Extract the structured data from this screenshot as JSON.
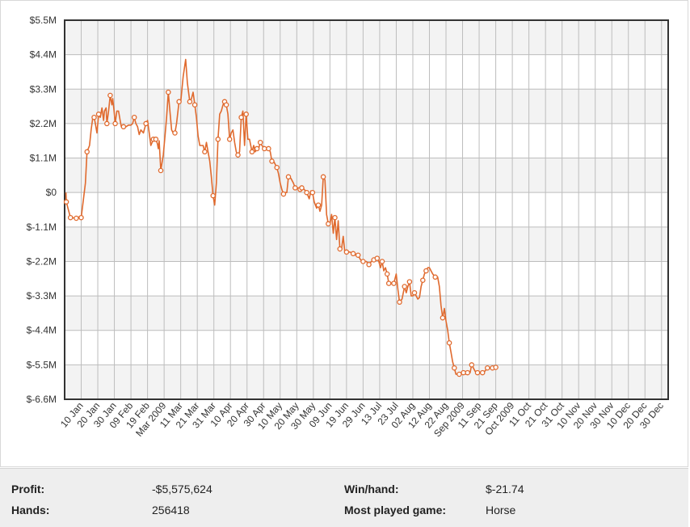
{
  "chart_data": {
    "type": "line",
    "title": "",
    "xlabel": "",
    "ylabel": "",
    "ylim": [
      -6.6,
      5.5
    ],
    "y_ticks": [
      "$5.5M",
      "$4.4M",
      "$3.3M",
      "$2.2M",
      "$1.1M",
      "$0",
      "$-1.1M",
      "$-2.2M",
      "$-3.3M",
      "$-4.4M",
      "$-5.5M",
      "$-6.6M"
    ],
    "x_ticks": [
      "10 Jan",
      "20 Jan",
      "30 Jan",
      "09 Feb",
      "19 Feb",
      "Mar 2009",
      "11 Mar",
      "21 Mar",
      "31 Mar",
      "10 Apr",
      "20 Apr",
      "30 Apr",
      "10 May",
      "20 May",
      "30 May",
      "09 Jun",
      "19 Jun",
      "29 Jun",
      "13 Jul",
      "23 Jul",
      "02 Aug",
      "12 Aug",
      "22 Aug",
      "Sep 2009",
      "11 Sep",
      "21 Sep",
      "Oct 2009",
      "11 Oct",
      "21 Oct",
      "31 Oct",
      "10 Nov",
      "20 Nov",
      "30 Nov",
      "10 Dec",
      "20 Dec",
      "30 Dec"
    ],
    "x_range": [
      0,
      36.4
    ],
    "grid": true,
    "series_color": "#e06a2e",
    "series": [
      {
        "points": [
          [
            0.08,
            0.0
          ],
          [
            0.1,
            -0.3
          ],
          [
            0.2,
            -0.5
          ],
          [
            0.35,
            -0.8
          ],
          [
            0.7,
            -0.82
          ],
          [
            0.85,
            -0.78
          ],
          [
            1.0,
            -0.8
          ],
          [
            1.25,
            0.3
          ],
          [
            1.35,
            1.3
          ],
          [
            1.5,
            1.5
          ],
          [
            1.6,
            2.0
          ],
          [
            1.7,
            2.4
          ],
          [
            1.78,
            2.4
          ],
          [
            1.85,
            2.2
          ],
          [
            1.95,
            1.9
          ],
          [
            2.05,
            2.5
          ],
          [
            2.15,
            2.4
          ],
          [
            2.25,
            2.7
          ],
          [
            2.35,
            2.3
          ],
          [
            2.4,
            2.6
          ],
          [
            2.5,
            2.7
          ],
          [
            2.55,
            2.2
          ],
          [
            2.65,
            2.6
          ],
          [
            2.75,
            3.1
          ],
          [
            2.85,
            2.8
          ],
          [
            2.9,
            3.0
          ],
          [
            2.98,
            2.6
          ],
          [
            3.05,
            2.2
          ],
          [
            3.15,
            2.6
          ],
          [
            3.25,
            2.6
          ],
          [
            3.35,
            2.3
          ],
          [
            3.42,
            2.1
          ],
          [
            3.55,
            2.1
          ],
          [
            3.7,
            2.1
          ],
          [
            3.85,
            2.15
          ],
          [
            4.0,
            2.15
          ],
          [
            4.1,
            2.2
          ],
          [
            4.2,
            2.4
          ],
          [
            4.3,
            2.2
          ],
          [
            4.4,
            2.1
          ],
          [
            4.5,
            1.85
          ],
          [
            4.6,
            2.0
          ],
          [
            4.75,
            1.9
          ],
          [
            4.9,
            2.2
          ],
          [
            5.0,
            2.3
          ],
          [
            5.1,
            1.9
          ],
          [
            5.2,
            1.5
          ],
          [
            5.35,
            1.7
          ],
          [
            5.5,
            1.7
          ],
          [
            5.6,
            1.55
          ],
          [
            5.65,
            1.4
          ],
          [
            5.7,
            1.65
          ],
          [
            5.8,
            0.7
          ],
          [
            5.95,
            1.2
          ],
          [
            6.05,
            1.8
          ],
          [
            6.15,
            2.4
          ],
          [
            6.25,
            3.2
          ],
          [
            6.35,
            2.6
          ],
          [
            6.45,
            2.0
          ],
          [
            6.55,
            1.9
          ],
          [
            6.65,
            1.9
          ],
          [
            6.75,
            2.2
          ],
          [
            6.9,
            2.9
          ],
          [
            7.0,
            2.9
          ],
          [
            7.15,
            3.7
          ],
          [
            7.3,
            4.25
          ],
          [
            7.4,
            3.5
          ],
          [
            7.5,
            3.1
          ],
          [
            7.55,
            2.9
          ],
          [
            7.65,
            3.0
          ],
          [
            7.75,
            3.2
          ],
          [
            7.85,
            2.8
          ],
          [
            7.95,
            2.4
          ],
          [
            8.05,
            1.8
          ],
          [
            8.15,
            1.5
          ],
          [
            8.25,
            1.5
          ],
          [
            8.35,
            1.5
          ],
          [
            8.45,
            1.3
          ],
          [
            8.55,
            1.6
          ],
          [
            8.65,
            1.3
          ],
          [
            8.75,
            1.0
          ],
          [
            8.85,
            0.5
          ],
          [
            8.95,
            -0.1
          ],
          [
            9.05,
            -0.4
          ],
          [
            9.15,
            0.3
          ],
          [
            9.25,
            1.7
          ],
          [
            9.35,
            2.5
          ],
          [
            9.45,
            2.6
          ],
          [
            9.55,
            2.8
          ],
          [
            9.65,
            2.9
          ],
          [
            9.75,
            2.8
          ],
          [
            9.85,
            2.5
          ],
          [
            9.95,
            1.7
          ],
          [
            10.05,
            1.9
          ],
          [
            10.15,
            2.0
          ],
          [
            10.25,
            1.6
          ],
          [
            10.35,
            1.3
          ],
          [
            10.45,
            1.2
          ],
          [
            10.55,
            1.3
          ],
          [
            10.65,
            2.4
          ],
          [
            10.75,
            2.6
          ],
          [
            10.85,
            1.5
          ],
          [
            10.95,
            2.5
          ],
          [
            11.05,
            1.7
          ],
          [
            11.15,
            1.7
          ],
          [
            11.3,
            1.3
          ],
          [
            11.4,
            1.5
          ],
          [
            11.5,
            1.3
          ],
          [
            11.6,
            1.4
          ],
          [
            11.7,
            1.4
          ],
          [
            11.8,
            1.6
          ],
          [
            11.9,
            1.5
          ],
          [
            12.05,
            1.4
          ],
          [
            12.15,
            1.4
          ],
          [
            12.3,
            1.4
          ],
          [
            12.4,
            1.3
          ],
          [
            12.5,
            1.0
          ],
          [
            12.6,
            1.0
          ],
          [
            12.7,
            0.9
          ],
          [
            12.8,
            0.8
          ],
          [
            12.9,
            0.6
          ],
          [
            13.0,
            0.3
          ],
          [
            13.1,
            0.1
          ],
          [
            13.2,
            -0.05
          ],
          [
            13.3,
            0.0
          ],
          [
            13.4,
            0.0
          ],
          [
            13.5,
            0.5
          ],
          [
            13.65,
            0.45
          ],
          [
            13.8,
            0.3
          ],
          [
            13.9,
            0.15
          ],
          [
            14.05,
            0.15
          ],
          [
            14.2,
            0.1
          ],
          [
            14.3,
            0.15
          ],
          [
            14.45,
            0.1
          ],
          [
            14.6,
            0.0
          ],
          [
            14.75,
            -0.2
          ],
          [
            14.85,
            0.05
          ],
          [
            14.95,
            0.0
          ],
          [
            15.05,
            -0.3
          ],
          [
            15.2,
            -0.5
          ],
          [
            15.3,
            -0.4
          ],
          [
            15.4,
            -0.6
          ],
          [
            15.5,
            -0.4
          ],
          [
            15.6,
            0.5
          ],
          [
            15.7,
            0.4
          ],
          [
            15.8,
            -0.7
          ],
          [
            15.9,
            -1.0
          ],
          [
            16.0,
            -1.0
          ],
          [
            16.1,
            -0.7
          ],
          [
            16.2,
            -1.3
          ],
          [
            16.3,
            -0.8
          ],
          [
            16.4,
            -1.5
          ],
          [
            16.5,
            -0.9
          ],
          [
            16.6,
            -1.8
          ],
          [
            16.7,
            -1.8
          ],
          [
            16.8,
            -1.4
          ],
          [
            16.9,
            -1.9
          ],
          [
            17.0,
            -1.9
          ],
          [
            17.2,
            -1.9
          ],
          [
            17.4,
            -1.95
          ],
          [
            17.55,
            -2.0
          ],
          [
            17.7,
            -2.0
          ],
          [
            17.85,
            -2.15
          ],
          [
            18.0,
            -2.2
          ],
          [
            18.2,
            -2.2
          ],
          [
            18.35,
            -2.3
          ],
          [
            18.5,
            -2.2
          ],
          [
            18.65,
            -2.15
          ],
          [
            18.75,
            -2.15
          ],
          [
            18.85,
            -2.1
          ],
          [
            18.95,
            -2.2
          ],
          [
            19.05,
            -2.4
          ],
          [
            19.15,
            -2.2
          ],
          [
            19.25,
            -2.5
          ],
          [
            19.35,
            -2.4
          ],
          [
            19.45,
            -2.6
          ],
          [
            19.55,
            -2.9
          ],
          [
            19.7,
            -2.9
          ],
          [
            19.85,
            -2.9
          ],
          [
            20.0,
            -2.6
          ],
          [
            20.1,
            -3.1
          ],
          [
            20.2,
            -3.5
          ],
          [
            20.35,
            -3.4
          ],
          [
            20.5,
            -3.0
          ],
          [
            20.6,
            -3.2
          ],
          [
            20.7,
            -3.0
          ],
          [
            20.8,
            -2.85
          ],
          [
            20.9,
            -3.3
          ],
          [
            21.0,
            -3.3
          ],
          [
            21.1,
            -3.2
          ],
          [
            21.2,
            -3.3
          ],
          [
            21.3,
            -3.4
          ],
          [
            21.4,
            -3.35
          ],
          [
            21.5,
            -3.0
          ],
          [
            21.6,
            -2.8
          ],
          [
            21.7,
            -2.6
          ],
          [
            21.8,
            -2.5
          ],
          [
            21.9,
            -2.4
          ],
          [
            22.0,
            -2.4
          ],
          [
            22.1,
            -2.5
          ],
          [
            22.2,
            -2.6
          ],
          [
            22.35,
            -2.7
          ],
          [
            22.5,
            -2.7
          ],
          [
            22.6,
            -3.0
          ],
          [
            22.7,
            -3.6
          ],
          [
            22.8,
            -4.0
          ],
          [
            22.9,
            -3.7
          ],
          [
            23.0,
            -4.1
          ],
          [
            23.1,
            -4.4
          ],
          [
            23.2,
            -4.8
          ],
          [
            23.3,
            -5.1
          ],
          [
            23.4,
            -5.4
          ],
          [
            23.5,
            -5.6
          ],
          [
            23.6,
            -5.8
          ],
          [
            23.8,
            -5.8
          ],
          [
            23.9,
            -5.75
          ],
          [
            24.05,
            -5.75
          ],
          [
            24.2,
            -5.8
          ],
          [
            24.3,
            -5.75
          ],
          [
            24.45,
            -5.75
          ],
          [
            24.55,
            -5.5
          ],
          [
            24.65,
            -5.6
          ],
          [
            24.75,
            -5.7
          ],
          [
            24.9,
            -5.75
          ],
          [
            25.05,
            -5.75
          ],
          [
            25.2,
            -5.75
          ],
          [
            25.35,
            -5.7
          ],
          [
            25.5,
            -5.6
          ],
          [
            25.65,
            -5.6
          ],
          [
            25.8,
            -5.6
          ],
          [
            25.95,
            -5.6
          ],
          [
            26.0,
            -5.58
          ]
        ],
        "markers": [
          [
            0.1,
            -0.3
          ],
          [
            0.35,
            -0.8
          ],
          [
            0.7,
            -0.82
          ],
          [
            1.0,
            -0.8
          ],
          [
            1.35,
            1.3
          ],
          [
            1.78,
            2.4
          ],
          [
            2.05,
            2.5
          ],
          [
            2.55,
            2.2
          ],
          [
            2.75,
            3.1
          ],
          [
            3.05,
            2.2
          ],
          [
            3.55,
            2.1
          ],
          [
            4.2,
            2.4
          ],
          [
            4.9,
            2.2
          ],
          [
            5.35,
            1.7
          ],
          [
            5.5,
            1.7
          ],
          [
            5.8,
            0.7
          ],
          [
            6.25,
            3.2
          ],
          [
            6.65,
            1.9
          ],
          [
            6.9,
            2.9
          ],
          [
            7.55,
            2.9
          ],
          [
            7.85,
            2.8
          ],
          [
            8.45,
            1.3
          ],
          [
            8.95,
            -0.1
          ],
          [
            9.25,
            1.7
          ],
          [
            9.65,
            2.9
          ],
          [
            9.75,
            2.8
          ],
          [
            9.95,
            1.7
          ],
          [
            10.45,
            1.2
          ],
          [
            10.65,
            2.4
          ],
          [
            10.95,
            2.5
          ],
          [
            11.3,
            1.3
          ],
          [
            11.6,
            1.4
          ],
          [
            11.8,
            1.6
          ],
          [
            12.05,
            1.4
          ],
          [
            12.3,
            1.4
          ],
          [
            12.5,
            1.0
          ],
          [
            12.8,
            0.8
          ],
          [
            13.2,
            -0.05
          ],
          [
            13.5,
            0.5
          ],
          [
            13.9,
            0.15
          ],
          [
            14.2,
            0.1
          ],
          [
            14.3,
            0.15
          ],
          [
            14.6,
            0.0
          ],
          [
            14.95,
            0.0
          ],
          [
            15.3,
            -0.4
          ],
          [
            15.6,
            0.5
          ],
          [
            15.9,
            -1.0
          ],
          [
            16.3,
            -0.8
          ],
          [
            16.6,
            -1.8
          ],
          [
            17.0,
            -1.9
          ],
          [
            17.4,
            -1.95
          ],
          [
            17.7,
            -2.0
          ],
          [
            18.0,
            -2.2
          ],
          [
            18.35,
            -2.3
          ],
          [
            18.65,
            -2.15
          ],
          [
            18.85,
            -2.1
          ],
          [
            19.15,
            -2.2
          ],
          [
            19.45,
            -2.6
          ],
          [
            19.55,
            -2.9
          ],
          [
            19.85,
            -2.9
          ],
          [
            20.2,
            -3.5
          ],
          [
            20.5,
            -3.0
          ],
          [
            20.8,
            -2.85
          ],
          [
            21.1,
            -3.2
          ],
          [
            21.6,
            -2.8
          ],
          [
            21.8,
            -2.5
          ],
          [
            22.35,
            -2.7
          ],
          [
            22.8,
            -4.0
          ],
          [
            23.2,
            -4.8
          ],
          [
            23.5,
            -5.6
          ],
          [
            23.8,
            -5.8
          ],
          [
            24.05,
            -5.75
          ],
          [
            24.3,
            -5.75
          ],
          [
            24.55,
            -5.5
          ],
          [
            24.9,
            -5.75
          ],
          [
            25.2,
            -5.75
          ],
          [
            25.5,
            -5.6
          ],
          [
            25.8,
            -5.6
          ],
          [
            26.0,
            -5.58
          ]
        ]
      }
    ]
  },
  "stats": {
    "profit_label": "Profit:",
    "profit_value": "-$5,575,624",
    "hands_label": "Hands:",
    "hands_value": "256418",
    "winhand_label": "Win/hand:",
    "winhand_value": "$-21.74",
    "game_label": "Most played game:",
    "game_value": "Horse"
  }
}
